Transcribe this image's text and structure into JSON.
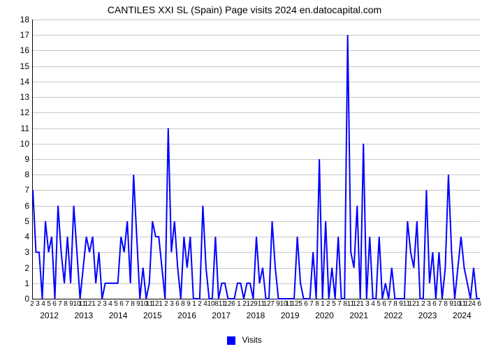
{
  "chart": {
    "type": "line",
    "title": "CANTILES XXI SL (Spain) Page visits 2024 en.datocapital.com",
    "title_fontsize": 14,
    "background_color": "#ffffff",
    "grid_color": "#c8c8c8",
    "axis_color": "#000000",
    "ylim": [
      0,
      18
    ],
    "ytick_step": 1,
    "yticks": [
      0,
      1,
      2,
      3,
      4,
      5,
      6,
      7,
      8,
      9,
      10,
      11,
      12,
      13,
      14,
      15,
      16,
      17,
      18
    ],
    "line_color": "#0000ff",
    "line_width": 2,
    "legend": {
      "label": "Visits",
      "swatch_color": "#0000ff",
      "position": "bottom-center"
    },
    "x_years": [
      "2012",
      "2013",
      "2014",
      "2015",
      "2016",
      "2017",
      "2018",
      "2019",
      "2020",
      "2021",
      "2022",
      "2023",
      "2024"
    ],
    "x_month_tick_rows": [
      [
        "2",
        "3",
        "4",
        "5",
        "6",
        "7",
        "8",
        "9",
        "10",
        "11",
        "12"
      ],
      [
        "1",
        "2",
        "3",
        "4",
        "5",
        "6",
        "7",
        "8",
        "9",
        "10",
        "11",
        "12"
      ],
      [
        "1",
        "2",
        "3"
      ],
      [
        "6",
        "8",
        "9"
      ],
      [
        "1",
        "2",
        "4"
      ],
      [
        "10"
      ],
      [
        "8",
        "11",
        "12"
      ],
      [
        "6"
      ],
      [
        "1",
        "2",
        "12"
      ],
      [
        "9",
        "11",
        "12"
      ],
      [
        "7",
        "9",
        "10",
        "11",
        "12"
      ],
      [
        "5",
        "6",
        "7",
        "8"
      ],
      [
        "1",
        "2",
        "5",
        "7",
        "8"
      ],
      [
        "11",
        "12",
        "1",
        "3",
        "4",
        "5",
        "6",
        "7",
        "8",
        "9",
        "11",
        "12"
      ],
      [
        "1",
        "2",
        "3"
      ],
      [
        "6",
        "7",
        "8",
        "9",
        "10",
        "11",
        "12",
        "4",
        "6"
      ]
    ],
    "values": [
      7,
      3,
      3,
      0,
      5,
      3,
      4,
      0,
      6,
      3,
      1,
      4,
      1,
      6,
      3,
      0,
      2,
      4,
      3,
      4,
      1,
      3,
      0,
      1,
      1,
      1,
      1,
      1,
      4,
      3,
      5,
      1,
      8,
      4,
      0,
      2,
      0,
      1,
      5,
      4,
      4,
      2,
      0,
      11,
      3,
      5,
      2,
      0,
      4,
      2,
      4,
      0,
      0,
      0,
      6,
      2,
      0,
      0,
      4,
      0,
      1,
      1,
      0,
      0,
      0,
      1,
      1,
      0,
      1,
      1,
      0,
      4,
      1,
      2,
      0,
      0,
      5,
      2,
      0,
      0,
      0,
      0,
      0,
      0,
      4,
      1,
      0,
      0,
      0,
      3,
      0,
      9,
      0,
      5,
      0,
      2,
      0,
      4,
      0,
      0,
      17,
      3,
      2,
      6,
      0,
      10,
      0,
      4,
      0,
      0,
      4,
      0,
      1,
      0,
      2,
      0,
      0,
      0,
      0,
      5,
      3,
      2,
      5,
      0,
      0,
      7,
      1,
      3,
      0,
      3,
      0,
      2,
      8,
      3,
      0,
      2,
      4,
      2,
      1,
      0,
      2,
      0,
      0
    ],
    "label_fontsize": 12
  }
}
